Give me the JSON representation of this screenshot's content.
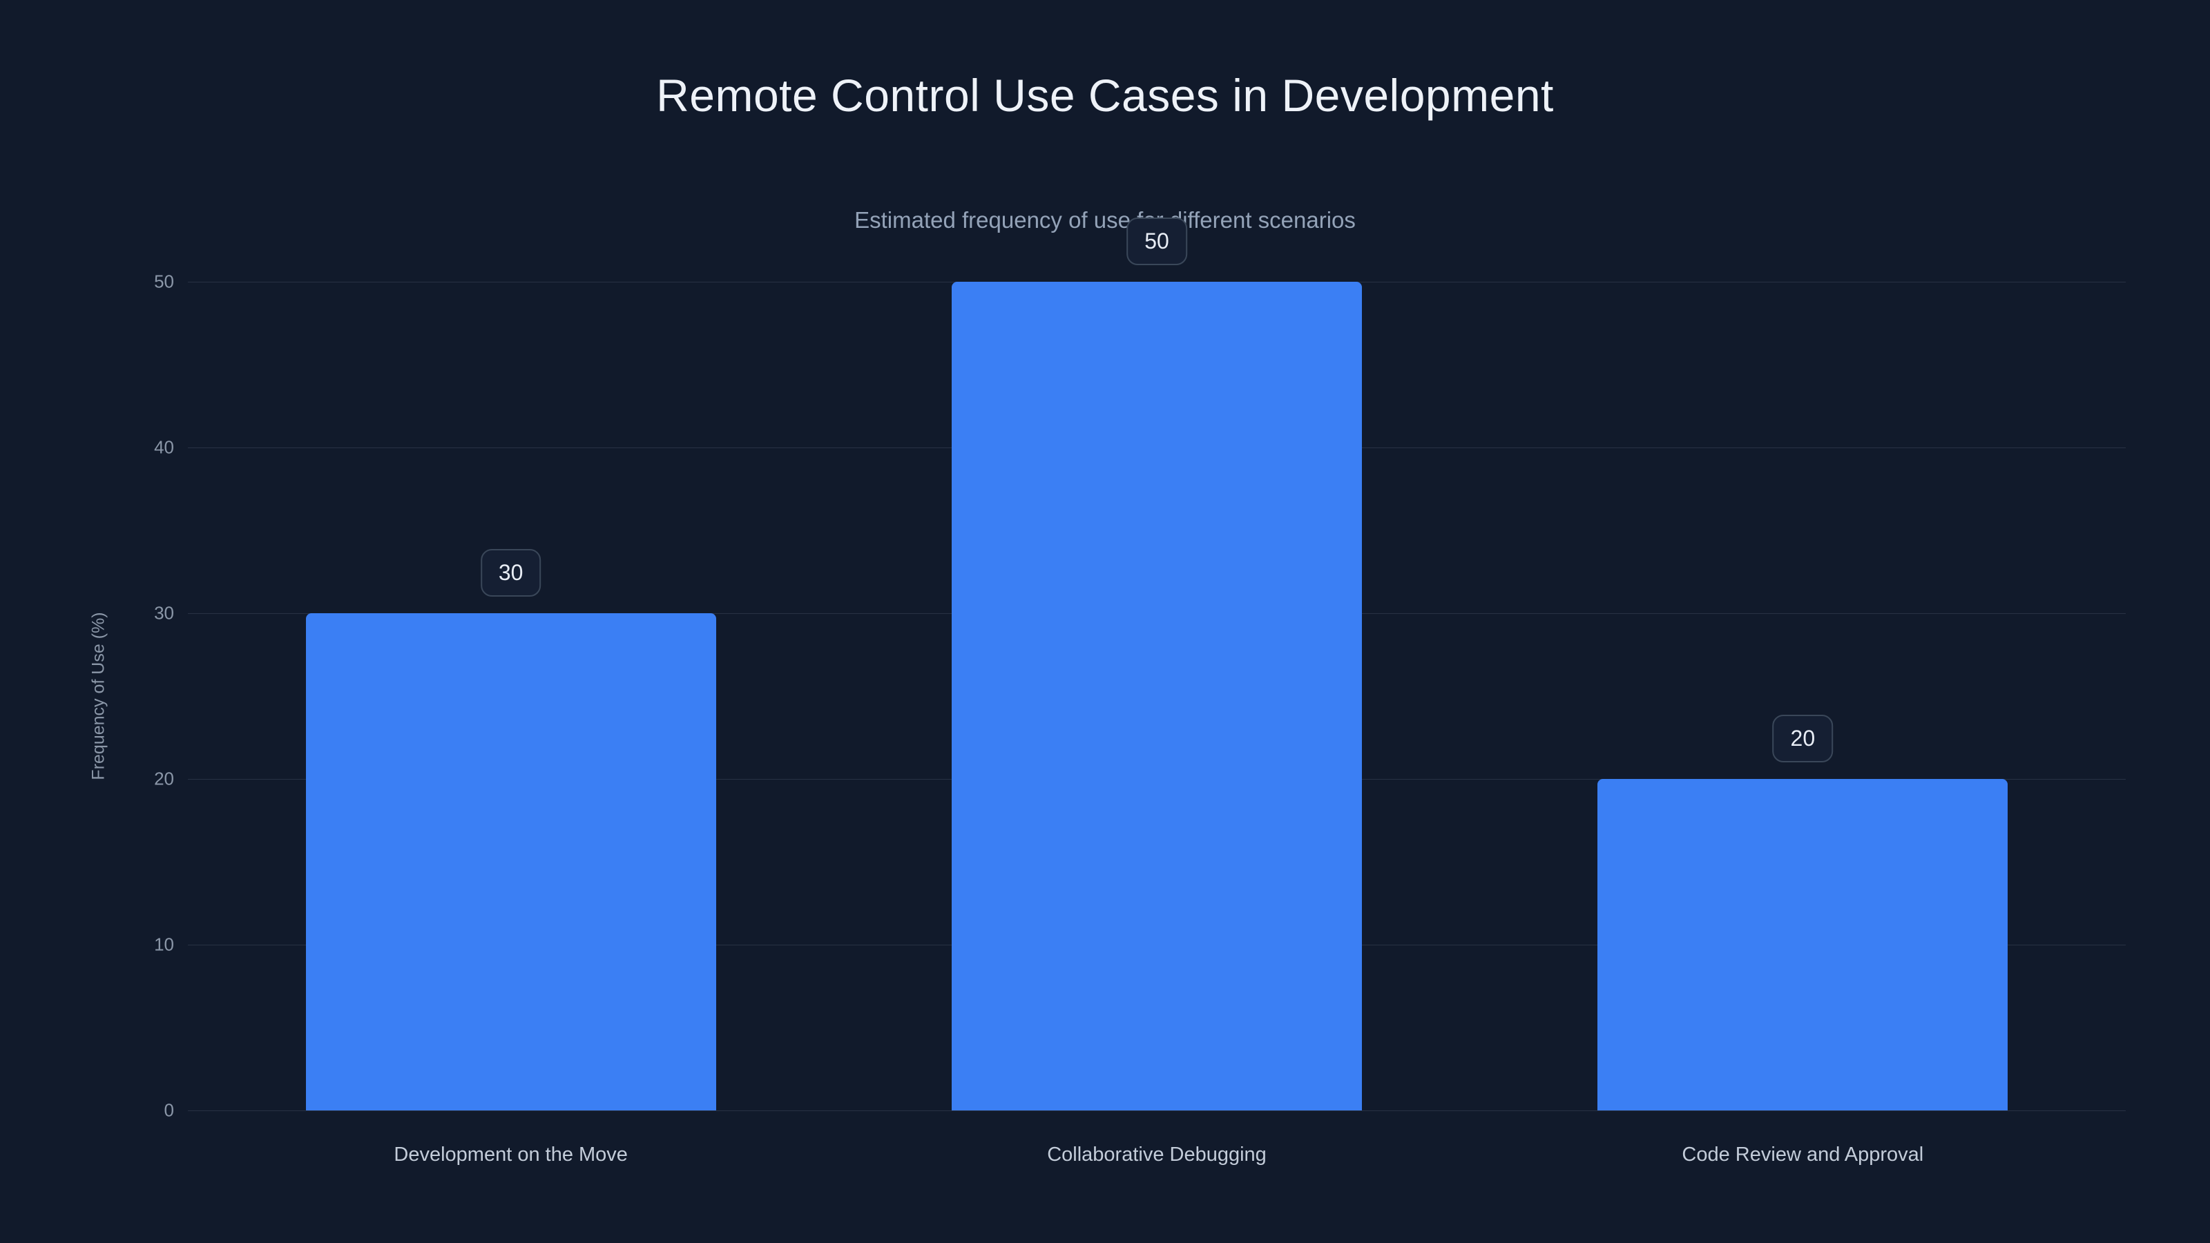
{
  "chart_data": {
    "type": "bar",
    "title": "Remote Control Use Cases in Development",
    "subtitle": "Estimated frequency of use for different scenarios",
    "categories": [
      "Development on the Move",
      "Collaborative Debugging",
      "Code Review and Approval"
    ],
    "values": [
      30,
      50,
      20
    ],
    "xlabel": "",
    "ylabel": "Frequency of Use (%)",
    "ylim": [
      0,
      50
    ],
    "yticks": [
      0,
      10,
      20,
      30,
      40,
      50
    ],
    "grid": true,
    "legend": "none",
    "bar_color": "#3b7ff4",
    "background_color": "#111a2b"
  }
}
